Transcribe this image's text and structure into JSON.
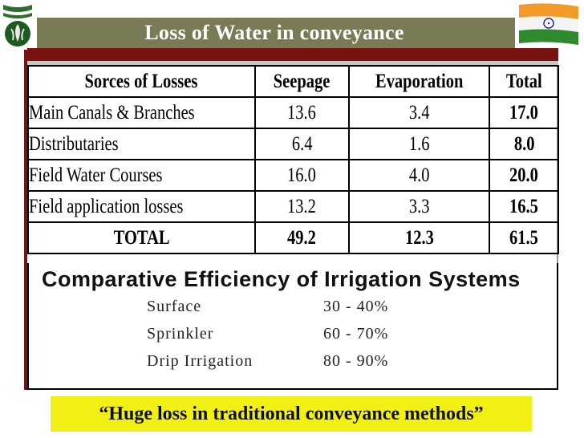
{
  "title": "Loss of Water in conveyance",
  "table": {
    "headers": [
      "Sorces of Losses",
      "Seepage",
      "Evaporation",
      "Total"
    ],
    "rows": [
      {
        "source": "Main Canals & Branches",
        "seepage": "13.6",
        "evaporation": "3.4",
        "total": "17.0"
      },
      {
        "source": "Distributaries",
        "seepage": "6.4",
        "evaporation": "1.6",
        "total": "8.0"
      },
      {
        "source": "Field Water Courses",
        "seepage": "16.0",
        "evaporation": "4.0",
        "total": "20.0"
      },
      {
        "source": "Field application losses",
        "seepage": "13.2",
        "evaporation": "3.3",
        "total": "16.5"
      }
    ],
    "total_row": {
      "label": "TOTAL",
      "seepage": "49.2",
      "evaporation": "12.3",
      "total": "61.5"
    }
  },
  "efficiency": {
    "title": "Comparative Efficiency of Irrigation Systems",
    "items": [
      {
        "system": "Surface",
        "range": "30 - 40%"
      },
      {
        "system": "Sprinkler",
        "range": "60 - 70%"
      },
      {
        "system": "Drip Irrigation",
        "range": "80 - 90%"
      }
    ]
  },
  "quote": "“Huge loss in traditional conveyance methods”",
  "colors": {
    "title_bar": "#7a7a55",
    "band": "#7a1212",
    "quote_bg": "#f2ef14"
  }
}
